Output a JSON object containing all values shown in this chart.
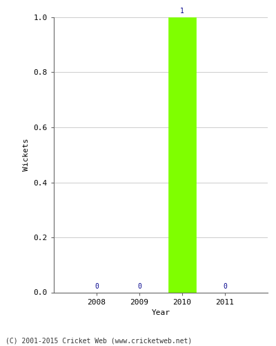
{
  "years": [
    2008,
    2009,
    2010,
    2011
  ],
  "values": [
    0,
    0,
    1,
    0
  ],
  "bar_color": "#7FFF00",
  "bar_edge_color": "#7FFF00",
  "label_color": "#00008B",
  "xlabel": "Year",
  "ylabel": "Wickets",
  "ylim": [
    0.0,
    1.0
  ],
  "xlim": [
    2007.0,
    2012.0
  ],
  "yticks": [
    0.0,
    0.2,
    0.4,
    0.6,
    0.8,
    1.0
  ],
  "xticks": [
    2008,
    2009,
    2010,
    2011
  ],
  "bar_width": 0.65,
  "grid_color": "#cccccc",
  "background_color": "#ffffff",
  "footnote": "(C) 2001-2015 Cricket Web (www.cricketweb.net)",
  "footnote_color": "#333333",
  "label_fontsize": 8,
  "axis_label_fontsize": 8,
  "tick_fontsize": 8,
  "value_label_fontsize": 7
}
